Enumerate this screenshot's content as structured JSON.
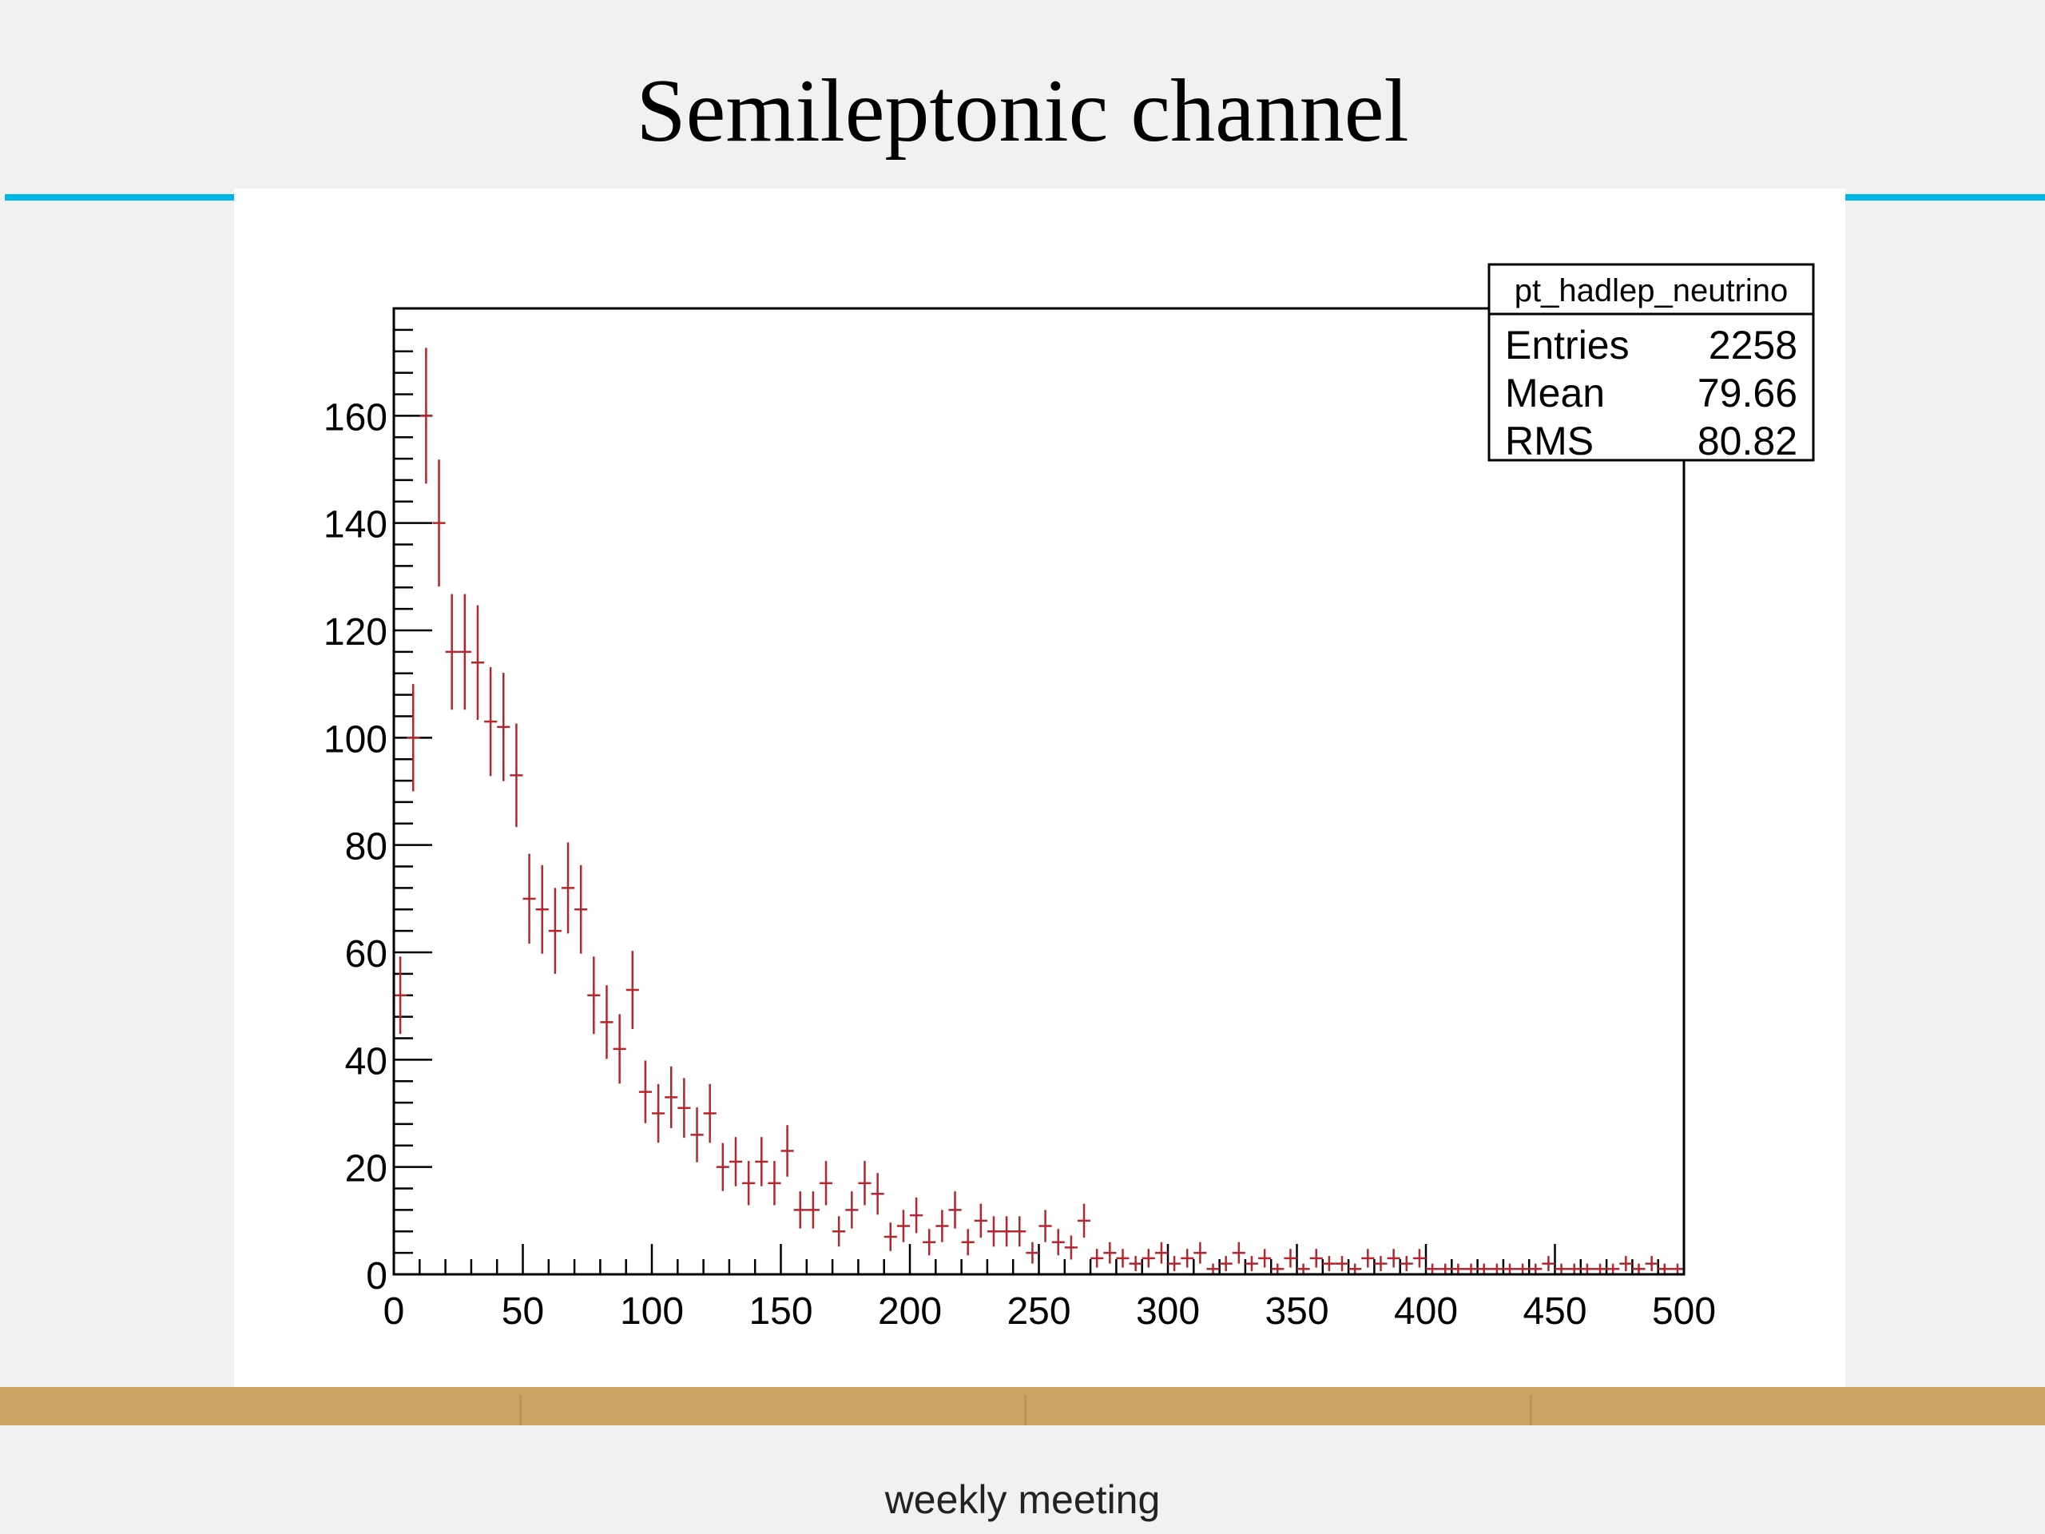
{
  "slide": {
    "title": "Semileptonic channel",
    "footer": "weekly meeting"
  },
  "colors": {
    "accent": "#00b7e6",
    "gold_bar": "#c9a463",
    "data_points": "#b3262d",
    "frame": "#000000"
  },
  "chart_data": {
    "type": "scatter",
    "style": "histogram with error bars",
    "title": "",
    "xlabel": "",
    "ylabel": "",
    "xlim": [
      0,
      500
    ],
    "ylim": [
      0,
      180
    ],
    "x_ticks": [
      0,
      50,
      100,
      150,
      200,
      250,
      300,
      350,
      400,
      450,
      500
    ],
    "y_ticks": [
      0,
      20,
      40,
      60,
      80,
      100,
      120,
      140,
      160
    ],
    "legend_placement": "top-right",
    "stats_box": {
      "name": "pt_hadlep_neutrino",
      "rows": [
        {
          "label": "Entries",
          "value": "2258"
        },
        {
          "label": "Mean",
          "value": "79.66"
        },
        {
          "label": "RMS",
          "value": "80.82"
        }
      ]
    },
    "series": [
      {
        "bin_width": 5,
        "x": [
          2.5,
          7.5,
          12.5,
          17.5,
          22.5,
          27.5,
          32.5,
          37.5,
          42.5,
          47.5,
          52.5,
          57.5,
          62.5,
          67.5,
          72.5,
          77.5,
          82.5,
          87.5,
          92.5,
          97.5,
          102.5,
          107.5,
          112.5,
          117.5,
          122.5,
          127.5,
          132.5,
          137.5,
          142.5,
          147.5,
          152.5,
          157.5,
          162.5,
          167.5,
          172.5,
          177.5,
          182.5,
          187.5,
          192.5,
          197.5,
          202.5,
          207.5,
          212.5,
          217.5,
          222.5,
          227.5,
          232.5,
          237.5,
          242.5,
          247.5,
          252.5,
          257.5,
          262.5,
          267.5,
          272.5,
          277.5,
          282.5,
          287.5,
          292.5,
          297.5,
          302.5,
          307.5,
          312.5,
          317.5,
          322.5,
          327.5,
          332.5,
          337.5,
          342.5,
          347.5,
          352.5,
          357.5,
          362.5,
          367.5,
          372.5,
          377.5,
          382.5,
          387.5,
          392.5,
          397.5,
          402.5,
          407.5,
          412.5,
          417.5,
          422.5,
          427.5,
          432.5,
          437.5,
          442.5,
          447.5,
          452.5,
          457.5,
          462.5,
          467.5,
          472.5,
          477.5,
          482.5,
          487.5,
          492.5,
          497.5
        ],
        "y": [
          52,
          100,
          160,
          140,
          116,
          116,
          114,
          103,
          102,
          93,
          70,
          68,
          64,
          72,
          68,
          52,
          47,
          42,
          53,
          34,
          30,
          33,
          31,
          26,
          30,
          20,
          21,
          17,
          21,
          17,
          23,
          12,
          12,
          17,
          8,
          12,
          17,
          15,
          7,
          9,
          11,
          6,
          9,
          12,
          6,
          10,
          8,
          8,
          8,
          4,
          9,
          6,
          5,
          10,
          3,
          4,
          3,
          2,
          3,
          4,
          2,
          3,
          4,
          1,
          2,
          4,
          2,
          3,
          1,
          3,
          1,
          3,
          2,
          2,
          1,
          3,
          2,
          3,
          2,
          3,
          1,
          1,
          1,
          1,
          1,
          1,
          1,
          1,
          1,
          2,
          1,
          1,
          1,
          1,
          1,
          2,
          1,
          2,
          1,
          1
        ]
      }
    ]
  }
}
